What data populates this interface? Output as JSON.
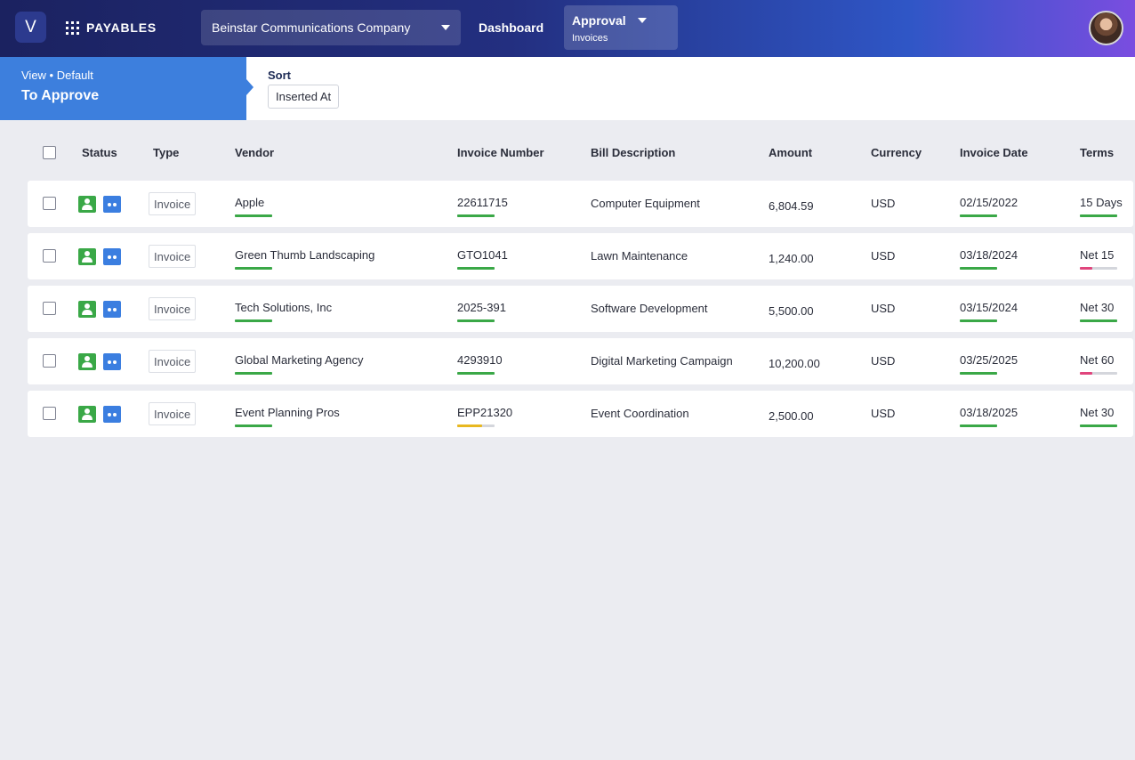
{
  "topbar": {
    "logo_letter": "V",
    "brand": "PAYABLES",
    "company": "Beinstar Communications Company",
    "nav_dashboard": "Dashboard",
    "nav_approval": "Approval",
    "nav_approval_sub": "Invoices"
  },
  "view": {
    "label": "View • Default",
    "title": "To Approve"
  },
  "sort": {
    "label": "Sort",
    "value": "Inserted At"
  },
  "columns": [
    "Status",
    "Type",
    "Vendor",
    "Invoice Number",
    "Bill Description",
    "Amount",
    "Currency",
    "Invoice Date",
    "Terms"
  ],
  "colors": {
    "green": "#3aa847",
    "blue": "#3b7ee0",
    "pink": "#e0457c",
    "yellow": "#e8b820"
  },
  "rows": [
    {
      "type": "Invoice",
      "vendor": "Apple",
      "invoice_number": "22611715",
      "description": "Computer Equipment",
      "amount": "6,804.59",
      "currency": "USD",
      "date": "02/15/2022",
      "terms": "15 Days",
      "bars": {
        "vendor": {
          "fill": 1,
          "color": "#3aa847"
        },
        "invoice": {
          "fill": 1,
          "color": "#3aa847"
        },
        "date": {
          "fill": 1,
          "color": "#3aa847"
        },
        "terms": {
          "fill": 1,
          "color": "#3aa847"
        }
      }
    },
    {
      "type": "Invoice",
      "vendor": "Green Thumb Landscaping",
      "invoice_number": "GTO1041",
      "description": "Lawn Maintenance",
      "amount": "1,240.00",
      "currency": "USD",
      "date": "03/18/2024",
      "terms": "Net 15",
      "bars": {
        "vendor": {
          "fill": 1,
          "color": "#3aa847"
        },
        "invoice": {
          "fill": 1,
          "color": "#3aa847"
        },
        "date": {
          "fill": 1,
          "color": "#3aa847"
        },
        "terms": {
          "fill": 0.33,
          "color": "#e0457c"
        }
      }
    },
    {
      "type": "Invoice",
      "vendor": "Tech Solutions, Inc",
      "invoice_number": "2025-391",
      "description": "Software Development",
      "amount": "5,500.00",
      "currency": "USD",
      "date": "03/15/2024",
      "terms": "Net 30",
      "bars": {
        "vendor": {
          "fill": 1,
          "color": "#3aa847"
        },
        "invoice": {
          "fill": 1,
          "color": "#3aa847"
        },
        "date": {
          "fill": 1,
          "color": "#3aa847"
        },
        "terms": {
          "fill": 1,
          "color": "#3aa847"
        }
      }
    },
    {
      "type": "Invoice",
      "vendor": "Global Marketing Agency",
      "invoice_number": "4293910",
      "description": "Digital Marketing Campaign",
      "amount": "10,200.00",
      "currency": "USD",
      "date": "03/25/2025",
      "terms": "Net 60",
      "bars": {
        "vendor": {
          "fill": 1,
          "color": "#3aa847"
        },
        "invoice": {
          "fill": 1,
          "color": "#3aa847"
        },
        "date": {
          "fill": 1,
          "color": "#3aa847"
        },
        "terms": {
          "fill": 0.33,
          "color": "#e0457c"
        }
      }
    },
    {
      "type": "Invoice",
      "vendor": "Event Planning Pros",
      "invoice_number": "EPP21320",
      "description": "Event Coordination",
      "amount": "2,500.00",
      "currency": "USD",
      "date": "03/18/2025",
      "terms": "Net 30",
      "bars": {
        "vendor": {
          "fill": 1,
          "color": "#3aa847"
        },
        "invoice": {
          "fill": 0.67,
          "color": "#e8b820"
        },
        "date": {
          "fill": 1,
          "color": "#3aa847"
        },
        "terms": {
          "fill": 1,
          "color": "#3aa847"
        }
      }
    }
  ]
}
